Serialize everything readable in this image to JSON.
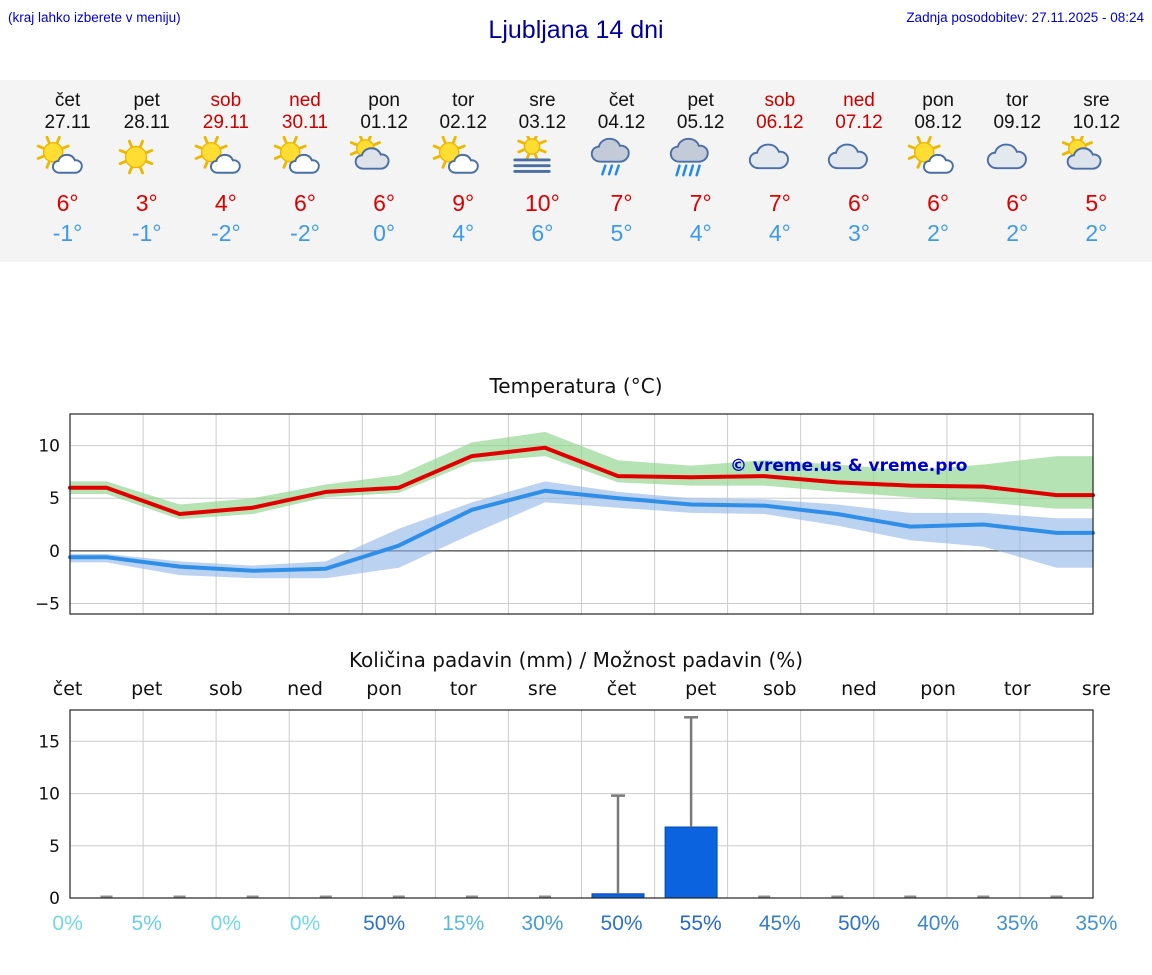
{
  "header": {
    "hint": "(kraj lahko izberete v meniju)",
    "title": "Ljubljana 14 dni",
    "updated": "Zadnja posodobitev: 27.11.2025 - 08:24"
  },
  "colors": {
    "link_blue": "#0000cc",
    "title_blue": "#000099",
    "weekend_red": "#cc0000",
    "high_red": "#dd0000",
    "low_blue": "#3d9aeb",
    "temp_max_line": "#e00000",
    "temp_min_line": "#2f8fe8",
    "temp_max_band": "#8fd48a",
    "temp_min_band": "#8fb4e8",
    "precip_bar": "#0b63e0",
    "whisker_gray": "#7a7a7a"
  },
  "forecast": {
    "days": [
      {
        "name": "čet",
        "date": "27.11",
        "weekend": false,
        "icon": "sun-small-cloud",
        "high": "6°",
        "low": "-1°"
      },
      {
        "name": "pet",
        "date": "28.11",
        "weekend": false,
        "icon": "sun",
        "high": "3°",
        "low": "-1°"
      },
      {
        "name": "sob",
        "date": "29.11",
        "weekend": true,
        "icon": "sun-small-cloud",
        "high": "4°",
        "low": "-2°"
      },
      {
        "name": "ned",
        "date": "30.11",
        "weekend": true,
        "icon": "sun-small-cloud",
        "high": "6°",
        "low": "-2°"
      },
      {
        "name": "pon",
        "date": "01.12",
        "weekend": false,
        "icon": "cloud-sun",
        "high": "6°",
        "low": "0°"
      },
      {
        "name": "tor",
        "date": "02.12",
        "weekend": false,
        "icon": "sun-small-cloud",
        "high": "9°",
        "low": "4°"
      },
      {
        "name": "sre",
        "date": "03.12",
        "weekend": false,
        "icon": "fog-sun",
        "high": "10°",
        "low": "6°"
      },
      {
        "name": "čet",
        "date": "04.12",
        "weekend": false,
        "icon": "rain",
        "high": "7°",
        "low": "5°"
      },
      {
        "name": "pet",
        "date": "05.12",
        "weekend": false,
        "icon": "heavy-rain",
        "high": "7°",
        "low": "4°"
      },
      {
        "name": "sob",
        "date": "06.12",
        "weekend": true,
        "icon": "cloudy",
        "high": "7°",
        "low": "4°"
      },
      {
        "name": "ned",
        "date": "07.12",
        "weekend": true,
        "icon": "cloudy",
        "high": "6°",
        "low": "3°"
      },
      {
        "name": "pon",
        "date": "08.12",
        "weekend": false,
        "icon": "sun-small-cloud",
        "high": "6°",
        "low": "2°"
      },
      {
        "name": "tor",
        "date": "09.12",
        "weekend": false,
        "icon": "cloudy",
        "high": "6°",
        "low": "2°"
      },
      {
        "name": "sre",
        "date": "10.12",
        "weekend": false,
        "icon": "cloud-sun",
        "high": "5°",
        "low": "2°"
      }
    ]
  },
  "chart_data": [
    {
      "type": "line",
      "title": "Temperatura (°C)",
      "categories": [
        "čet 27.11",
        "pet 28.11",
        "sob 29.11",
        "ned 30.11",
        "pon 01.12",
        "tor 02.12",
        "sre 03.12",
        "čet 04.12",
        "pet 05.12",
        "sob 06.12",
        "ned 07.12",
        "pon 08.12",
        "tor 09.12",
        "sre 10.12"
      ],
      "ylim": [
        -6,
        13
      ],
      "yticks": [
        -5,
        0,
        5,
        10
      ],
      "grid": true,
      "watermark": "© vreme.us & vreme.pro",
      "series": [
        {
          "name": "max temperature",
          "values": [
            6,
            3.5,
            4.1,
            5.6,
            6,
            9,
            9.8,
            7.1,
            7,
            7.1,
            6.5,
            6.2,
            6.1,
            5.3
          ],
          "upper": [
            6.6,
            4.4,
            5,
            6.3,
            7.2,
            10.3,
            11.3,
            8.6,
            8.1,
            8.6,
            8.2,
            7.6,
            8.2,
            9
          ],
          "lower": [
            5.4,
            3,
            3.5,
            5.1,
            5.5,
            8.4,
            9,
            6.5,
            6.2,
            6.2,
            5.6,
            5.1,
            4.6,
            4
          ]
        },
        {
          "name": "min temperature",
          "values": [
            -0.6,
            -1.5,
            -1.9,
            -1.7,
            0.5,
            3.9,
            5.7,
            5,
            4.4,
            4.3,
            3.5,
            2.3,
            2.5,
            1.7
          ],
          "upper": [
            -0.3,
            -1,
            -1.4,
            -1,
            2.1,
            4.6,
            6.6,
            5.6,
            5,
            4.9,
            4.4,
            3.6,
            3.6,
            3.1
          ],
          "lower": [
            -1.1,
            -2.3,
            -2.6,
            -2.6,
            -1.6,
            1.6,
            4.6,
            4.1,
            3.6,
            3.5,
            2.4,
            1,
            0.4,
            -1.6
          ]
        }
      ]
    },
    {
      "type": "bar",
      "title": "Količina padavin (mm) / Možnost padavin (%)",
      "categories": [
        "čet",
        "pet",
        "sob",
        "ned",
        "pon",
        "tor",
        "sre",
        "čet",
        "pet",
        "sob",
        "ned",
        "pon",
        "tor",
        "sre"
      ],
      "ylim": [
        0,
        18
      ],
      "yticks": [
        0,
        5,
        10,
        15
      ],
      "grid": true,
      "values": [
        0,
        0,
        0,
        0,
        0,
        0,
        0,
        0.4,
        6.8,
        0,
        0,
        0,
        0,
        0
      ],
      "whisker_max": [
        0,
        0,
        0,
        0,
        0,
        0,
        0,
        9.8,
        17.3,
        0,
        0,
        0,
        0,
        0
      ],
      "pop_labels": [
        "0%",
        "5%",
        "0%",
        "0%",
        "50%",
        "15%",
        "30%",
        "50%",
        "55%",
        "45%",
        "50%",
        "40%",
        "35%",
        "35%"
      ],
      "pop_values": [
        0,
        5,
        0,
        0,
        50,
        15,
        30,
        50,
        55,
        45,
        50,
        40,
        35,
        35
      ]
    }
  ]
}
